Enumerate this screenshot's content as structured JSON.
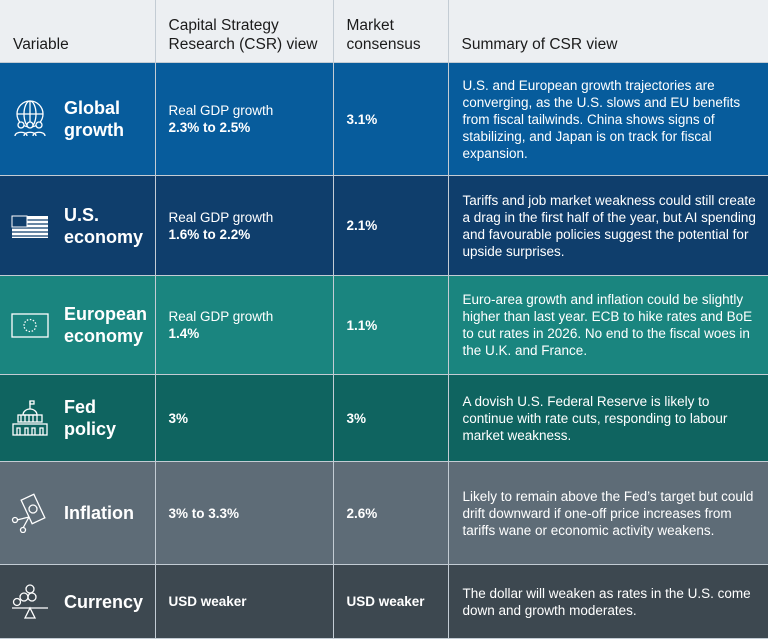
{
  "headers": [
    "Variable",
    "Capital Strategy Research (CSR) view",
    "Market consensus",
    "Summary of CSR view"
  ],
  "rows": [
    {
      "variable": "Global growth",
      "icon": "globe-people-icon",
      "color": "#075c9c",
      "csr_label": "Real GDP growth",
      "csr_value": "2.3% to 2.5%",
      "consensus": "3.1%",
      "summary": "U.S. and European growth trajectories are converging, as the U.S. slows and EU benefits from fiscal tailwinds. China shows signs of stabilizing, and Japan is on track for fiscal expansion."
    },
    {
      "variable": "U.S. economy",
      "icon": "us-flag-icon",
      "color": "#0f3e6c",
      "csr_label": "Real GDP growth",
      "csr_value": "1.6% to 2.2%",
      "consensus": "2.1%",
      "summary": "Tariffs and job market weakness could still create a drag in the first half of the year, but AI spending and favourable policies suggest the potential for upside surprises."
    },
    {
      "variable": "European economy",
      "icon": "eu-flag-icon",
      "color": "#1a857f",
      "csr_label": "Real GDP growth",
      "csr_value": "1.4%",
      "consensus": "1.1%",
      "summary": "Euro-area growth and inflation could be slightly higher than last year. ECB to hike rates and BoE to cut rates in 2026. No end to the fiscal woes in the U.K. and France."
    },
    {
      "variable": "Fed policy",
      "icon": "capitol-building-icon",
      "color": "#0f6460",
      "csr_label": "",
      "csr_value": "3%",
      "consensus": "3%",
      "summary": "A dovish U.S. Federal Reserve is likely to continue with rate cuts, responding to labour market weakness."
    },
    {
      "variable": "Inflation",
      "icon": "cut-dollar-bill-icon",
      "color": "#5e6c77",
      "csr_label": "",
      "csr_value": "3% to 3.3%",
      "consensus": "2.6%",
      "summary": "Likely to remain above the Fed’s target but could drift downward if one-off price increases from tariffs wane or economic activity weakens."
    },
    {
      "variable": "Currency",
      "icon": "currency-balance-icon",
      "color": "#3d4850",
      "csr_label": "",
      "csr_value": "USD weaker",
      "consensus": "USD weaker",
      "summary": "The dollar will weaken as rates in the U.S. come down and growth moderates."
    }
  ]
}
